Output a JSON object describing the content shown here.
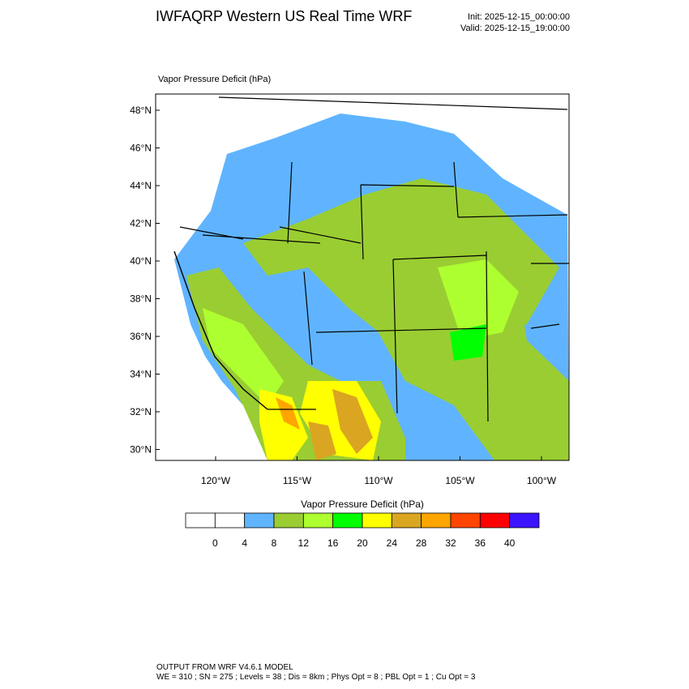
{
  "header": {
    "title": "IWFAQRP Western US Real Time WRF",
    "init": "Init: 2025-12-15_00:00:00",
    "valid": "Valid: 2025-12-15_19:00:00"
  },
  "map": {
    "label": "Vapor Pressure Deficit   (hPa)",
    "lat_ticks": [
      "48°N",
      "46°N",
      "44°N",
      "42°N",
      "40°N",
      "38°N",
      "36°N",
      "34°N",
      "32°N",
      "30°N"
    ],
    "lon_ticks": [
      "120°W",
      "115°W",
      "110°W",
      "105°W",
      "100°W"
    ]
  },
  "colorbar": {
    "title": "Vapor Pressure Deficit  (hPa)",
    "colors": [
      "#ffffff",
      "#ffffff",
      "#60b4ff",
      "#9acd32",
      "#adff2f",
      "#00ff00",
      "#ffff00",
      "#daa520",
      "#ffa500",
      "#ff4500",
      "#ff0000",
      "#3c14ff"
    ],
    "labels": [
      0,
      4,
      8,
      12,
      16,
      20,
      24,
      28,
      32,
      36,
      40
    ]
  },
  "footer": {
    "line1": "OUTPUT FROM WRF V4.6.1 MODEL",
    "line2": "WE = 310 ; SN = 275 ; Levels = 38 ; Dis = 8km ; Phys Opt = 8 ; PBL Opt = 1 ; Cu Opt = 3"
  }
}
